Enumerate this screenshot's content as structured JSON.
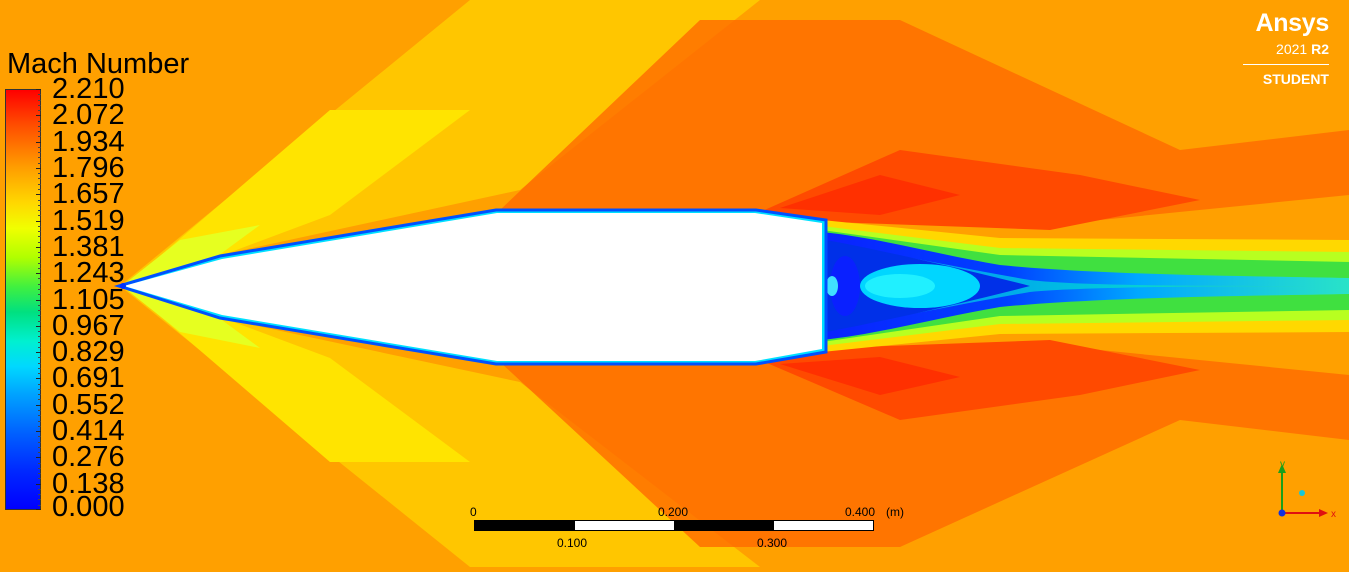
{
  "legend": {
    "title": "Mach Number",
    "levels": [
      "2.210",
      "2.072",
      "1.934",
      "1.796",
      "1.657",
      "1.519",
      "1.381",
      "1.243",
      "1.105",
      "0.967",
      "0.829",
      "0.691",
      "0.552",
      "0.414",
      "0.276",
      "0.138",
      "0.000"
    ]
  },
  "logo": {
    "name": "Ansys",
    "version_year": "2021",
    "version_release": "R2",
    "edition": "STUDENT"
  },
  "scale": {
    "top_labels": [
      "0",
      "0.200",
      "0.400"
    ],
    "bottom_labels": [
      "0.100",
      "0.300"
    ],
    "unit": "(m)"
  },
  "axes": {
    "y_label": "y",
    "x_label": "x"
  },
  "colors": {
    "freestream": "#ffa000",
    "high_mach": "#ff3a00",
    "wake_low": "#0a2cff",
    "body": "#ffffff"
  }
}
